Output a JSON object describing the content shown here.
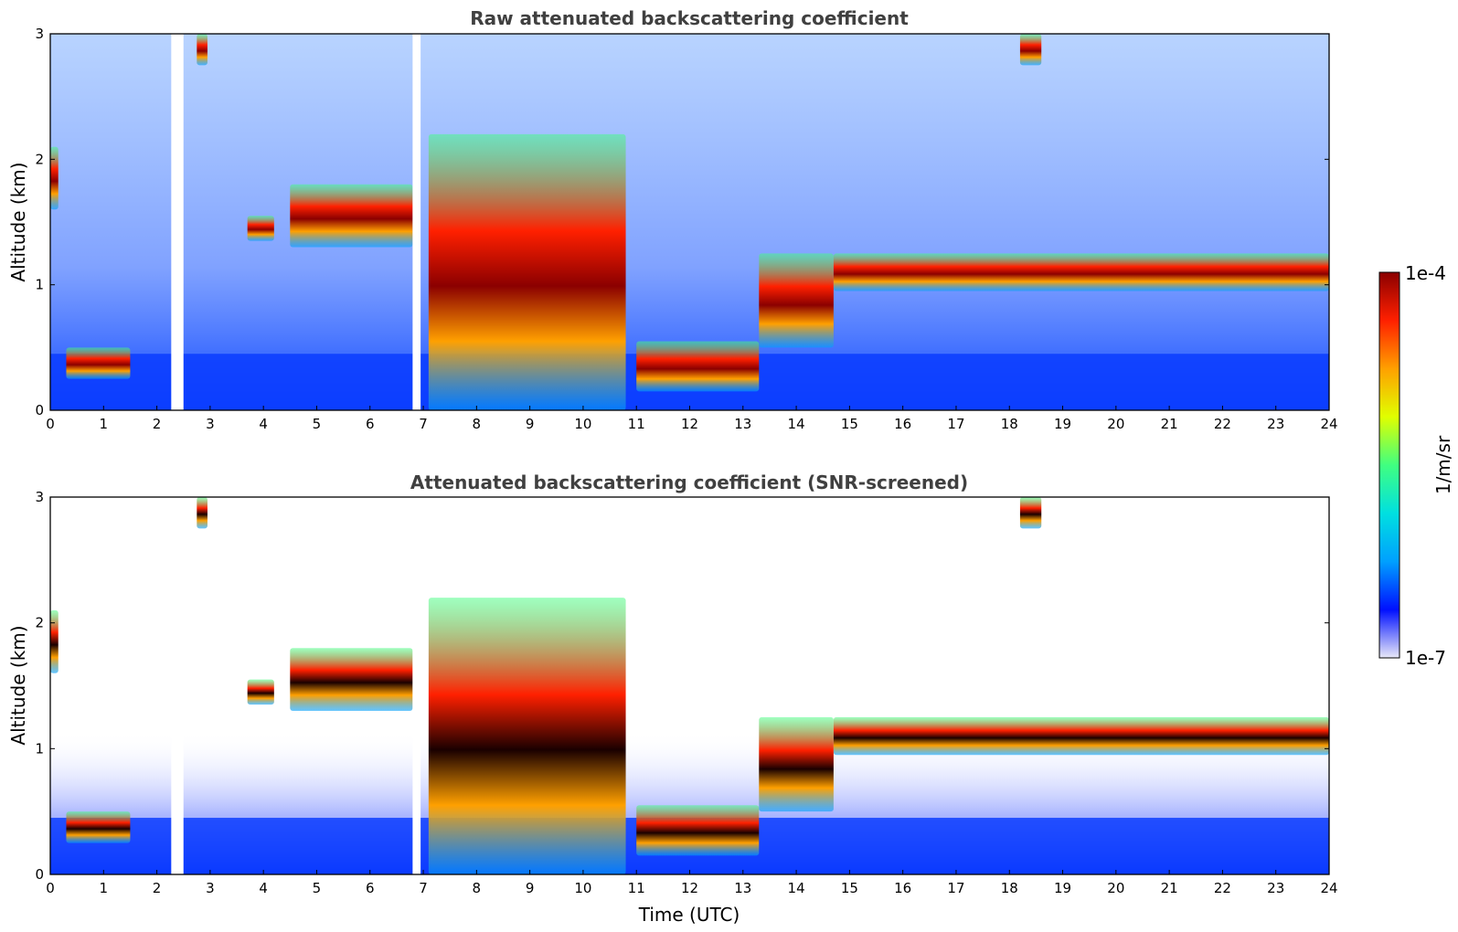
{
  "chart_data": [
    {
      "type": "heatmap",
      "title": "Raw attenuated backscattering coefficient",
      "xlabel": "",
      "ylabel": "Altitude (km)",
      "xlim": [
        0,
        24
      ],
      "ylim": [
        0,
        3
      ],
      "x_ticks": [
        "0",
        "1",
        "2",
        "3",
        "4",
        "5",
        "6",
        "7",
        "8",
        "9",
        "10",
        "11",
        "12",
        "13",
        "14",
        "15",
        "16",
        "17",
        "18",
        "19",
        "20",
        "21",
        "22",
        "23",
        "24"
      ],
      "y_ticks": [
        "0",
        "1",
        "2",
        "3"
      ],
      "gaps": [
        [
          2.27,
          2.5
        ],
        [
          6.8,
          6.95
        ]
      ],
      "layers": [
        {
          "x0": 0.3,
          "x1": 1.5,
          "y0": 0.25,
          "y1": 0.5
        },
        {
          "x0": 0.0,
          "x1": 0.15,
          "y0": 1.6,
          "y1": 2.1
        },
        {
          "x0": 2.75,
          "x1": 2.95,
          "y0": 2.75,
          "y1": 3.0
        },
        {
          "x0": 3.7,
          "x1": 4.2,
          "y0": 1.35,
          "y1": 1.55
        },
        {
          "x0": 4.5,
          "x1": 6.8,
          "y0": 1.3,
          "y1": 1.8
        },
        {
          "x0": 7.1,
          "x1": 10.8,
          "y0": 0.0,
          "y1": 2.2
        },
        {
          "x0": 11.0,
          "x1": 13.3,
          "y0": 0.15,
          "y1": 0.55
        },
        {
          "x0": 13.3,
          "x1": 14.7,
          "y0": 0.5,
          "y1": 1.25
        },
        {
          "x0": 14.7,
          "x1": 24.0,
          "y0": 0.95,
          "y1": 1.25
        },
        {
          "x0": 18.2,
          "x1": 18.6,
          "y0": 2.75,
          "y1": 3.0
        }
      ]
    },
    {
      "type": "heatmap",
      "title": "Attenuated backscattering coefficient (SNR-screened)",
      "xlabel": "Time (UTC)",
      "ylabel": "Altitude (km)",
      "xlim": [
        0,
        24
      ],
      "ylim": [
        0,
        3
      ],
      "x_ticks": [
        "0",
        "1",
        "2",
        "3",
        "4",
        "5",
        "6",
        "7",
        "8",
        "9",
        "10",
        "11",
        "12",
        "13",
        "14",
        "15",
        "16",
        "17",
        "18",
        "19",
        "20",
        "21",
        "22",
        "23",
        "24"
      ],
      "y_ticks": [
        "0",
        "1",
        "2",
        "3"
      ],
      "gaps": [
        [
          2.27,
          2.5
        ],
        [
          6.8,
          6.95
        ]
      ],
      "layers": [
        {
          "x0": 0.3,
          "x1": 1.5,
          "y0": 0.25,
          "y1": 0.5
        },
        {
          "x0": 0.0,
          "x1": 0.15,
          "y0": 1.6,
          "y1": 2.1
        },
        {
          "x0": 2.75,
          "x1": 2.95,
          "y0": 2.75,
          "y1": 3.0
        },
        {
          "x0": 3.7,
          "x1": 4.2,
          "y0": 1.35,
          "y1": 1.55
        },
        {
          "x0": 4.5,
          "x1": 6.8,
          "y0": 1.3,
          "y1": 1.8
        },
        {
          "x0": 7.1,
          "x1": 10.8,
          "y0": 0.0,
          "y1": 2.2
        },
        {
          "x0": 11.0,
          "x1": 13.3,
          "y0": 0.15,
          "y1": 0.55
        },
        {
          "x0": 13.3,
          "x1": 14.7,
          "y0": 0.5,
          "y1": 1.25
        },
        {
          "x0": 14.7,
          "x1": 24.0,
          "y0": 0.95,
          "y1": 1.25
        },
        {
          "x0": 18.2,
          "x1": 18.6,
          "y0": 2.75,
          "y1": 3.0
        }
      ]
    }
  ],
  "colorbar": {
    "max_label": "1e-4",
    "min_label": "1e-7",
    "unit_label": "1/m/sr",
    "scale": "log",
    "colors": [
      "#e8e8f8",
      "#0010ff",
      "#00a0ff",
      "#00e0e0",
      "#40ff80",
      "#e0ff00",
      "#ffa000",
      "#ff2000",
      "#8b0000"
    ]
  }
}
